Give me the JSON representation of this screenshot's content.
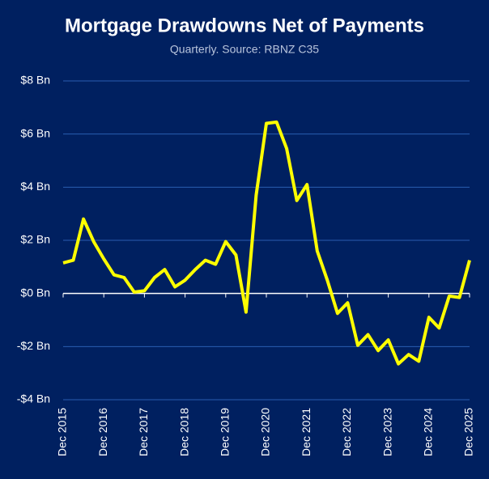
{
  "chart_data": {
    "type": "line",
    "title": "Mortgage Drawdowns Net of Payments",
    "subtitle": "Quarterly. Source: RBNZ C35",
    "categories": [
      "Dec 2015",
      null,
      null,
      null,
      "Dec 2016",
      null,
      null,
      null,
      "Dec 2017",
      null,
      null,
      null,
      "Dec 2018",
      null,
      null,
      null,
      "Dec 2019",
      null,
      null,
      null,
      "Dec 2020",
      null,
      null,
      null,
      "Dec 2021",
      null,
      null,
      null,
      "Dec 2022",
      null,
      null,
      null,
      "Dec 2023",
      null,
      null,
      null,
      "Dec 2024",
      null,
      null,
      null,
      "Dec 2025"
    ],
    "values": [
      1.15,
      1.25,
      2.8,
      1.95,
      1.3,
      0.7,
      0.6,
      0.05,
      0.1,
      0.6,
      0.9,
      0.25,
      0.5,
      0.9,
      1.25,
      1.1,
      1.95,
      1.45,
      -0.7,
      3.7,
      6.4,
      6.45,
      5.45,
      3.5,
      4.1,
      1.6,
      0.5,
      -0.75,
      -0.35,
      -1.95,
      -1.55,
      -2.15,
      -1.75,
      -2.65,
      -2.3,
      -2.55,
      -0.9,
      -1.3,
      -0.1,
      -0.15,
      1.25
    ],
    "color": "#ffff00",
    "ylim": [
      -4,
      8
    ],
    "yticks": [
      {
        "value": -4,
        "label": "-$4 Bn"
      },
      {
        "value": -2,
        "label": "-$2 Bn"
      },
      {
        "value": 0,
        "label": "$0 Bn"
      },
      {
        "value": 2,
        "label": "$2 Bn"
      },
      {
        "value": 4,
        "label": "$4 Bn"
      },
      {
        "value": 6,
        "label": "$6 Bn"
      },
      {
        "value": 8,
        "label": "$8 Bn"
      }
    ],
    "grid": true
  }
}
